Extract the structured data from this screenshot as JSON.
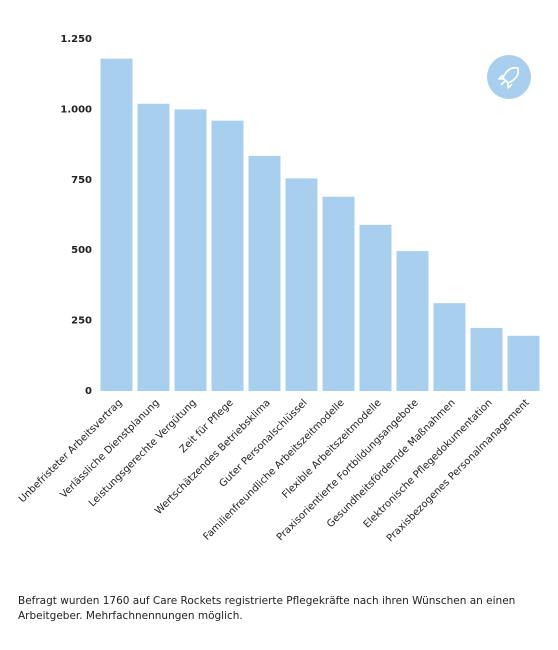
{
  "chart_data": {
    "type": "bar",
    "categories": [
      "Unbefristeter Arbeitsvertrag",
      "Verlässliche Dienstplanung",
      "Leistungsgerechte Vergütung",
      "Zeit für Pflege",
      "Wertschätzendes Betriebsklima",
      "Guter Personalschlüssel",
      "Familienfreundliche Arbeitszeitmodelle",
      "Flexible Arbeitszeitmodelle",
      "Praxisorientierte Fortbildungsangebote",
      "Gesundheitsfördernde Maßnahmen",
      "Elektronische Pflegedokumentation",
      "Praxisbezogenes Personalmanagement"
    ],
    "values": [
      1180,
      1020,
      1000,
      960,
      835,
      755,
      690,
      590,
      497,
      312,
      224,
      196
    ],
    "color": "#a8cfee",
    "ylim": [
      0,
      1250
    ],
    "yticks": [
      0,
      250,
      500,
      750,
      {
        "value": 1000,
        "label": "1.000"
      },
      {
        "value": 1250,
        "label": "1.250"
      }
    ],
    "grid": false,
    "footnote": "Befragt wurden 1760 auf Care Rockets registrierte Pflegekräfte nach ihren Wünschen an einen Arbeitgeber. Mehrfachnennungen möglich."
  }
}
